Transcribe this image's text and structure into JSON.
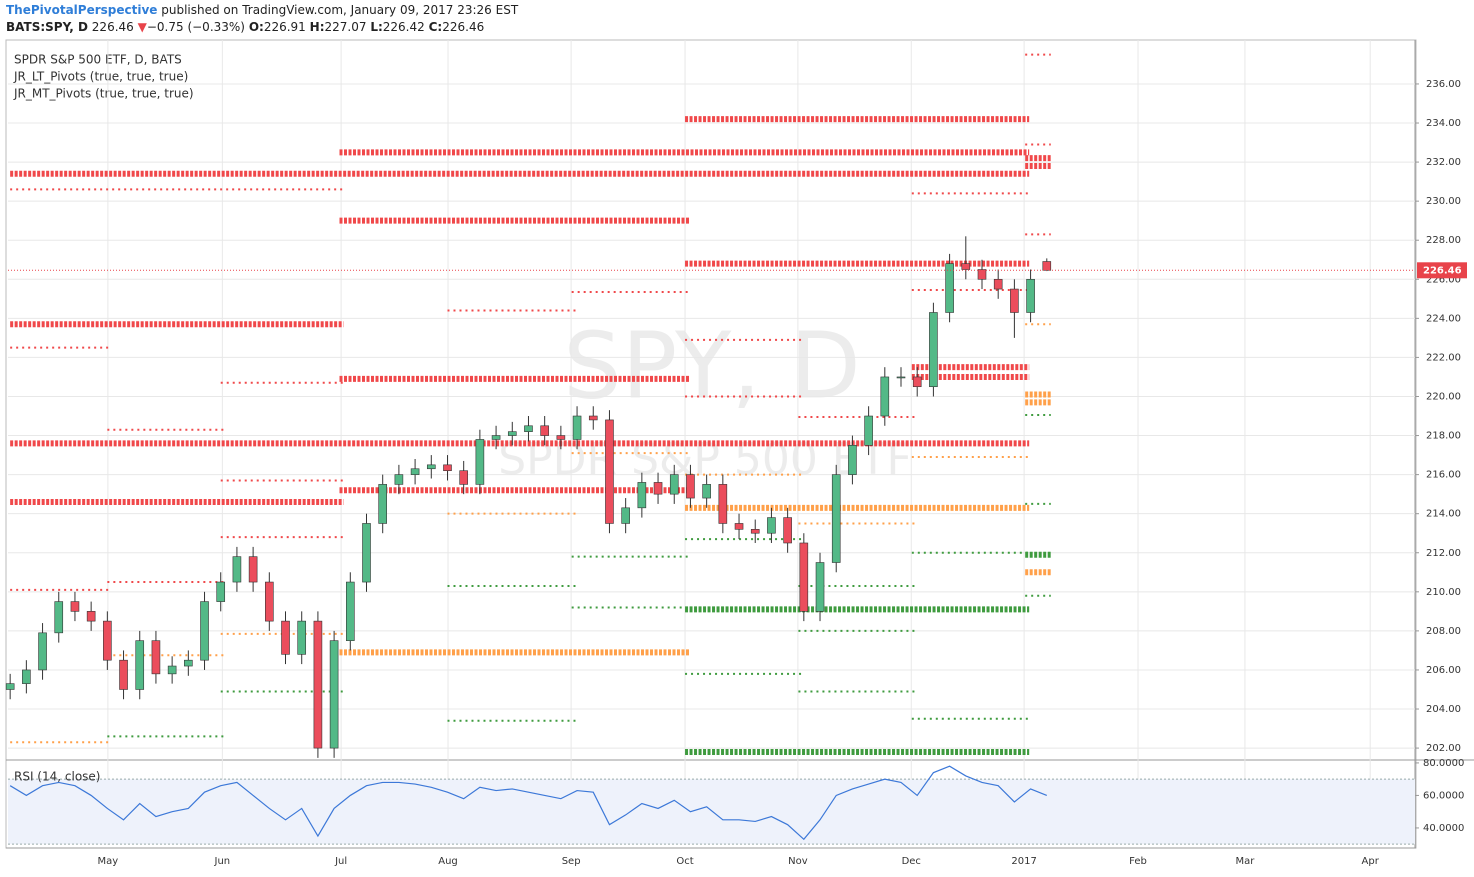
{
  "header": {
    "author": "ThePivotalPerspective",
    "published": " published on TradingView.com, January 09, 2017 23:26 EST",
    "symbol": "BATS:SPY, D",
    "price": "226.46",
    "arrow": "▼",
    "change": "−0.75 (−0.33%)",
    "o_label": "O:",
    "o": "226.91",
    "h_label": "H:",
    "h": "227.07",
    "l_label": "L:",
    "l": "226.42",
    "c_label": "C:",
    "c": "226.46"
  },
  "chart_data": {
    "type": "candlestick",
    "title": "SPDR S&P 500 ETF, D, BATS",
    "watermark": "SPY, D",
    "watermark_sub": "SPDR S&P 500 ETF",
    "x": [
      0,
      3,
      6,
      9,
      12,
      15,
      18,
      21,
      24,
      27,
      30,
      33,
      36,
      39,
      42,
      45,
      48,
      51,
      54,
      57,
      60,
      63,
      66,
      69,
      72,
      75,
      78,
      81,
      84,
      87,
      90,
      93,
      96,
      99,
      102,
      105,
      108,
      111,
      114,
      117,
      120,
      123,
      126,
      129,
      132,
      135,
      138,
      141,
      144,
      147,
      150,
      153,
      156,
      159,
      162,
      165,
      168,
      171,
      174,
      177,
      180,
      183,
      186,
      189,
      192
    ],
    "open": [
      205.0,
      205.3,
      206.0,
      207.9,
      209.5,
      209.0,
      208.5,
      206.5,
      205.0,
      207.5,
      205.8,
      206.2,
      206.5,
      209.5,
      210.5,
      211.8,
      210.5,
      208.5,
      206.8,
      208.5,
      202.0,
      207.5,
      210.5,
      213.5,
      215.5,
      216.0,
      216.3,
      216.5,
      216.2,
      215.5,
      217.8,
      218.0,
      218.2,
      218.5,
      218.0,
      217.8,
      219.0,
      218.8,
      213.5,
      214.3,
      215.6,
      215.0,
      216.0,
      214.8,
      215.5,
      213.5,
      213.2,
      213.0,
      213.8,
      212.5,
      209.0,
      211.5,
      216.0,
      217.5,
      219.0,
      221.0,
      221.0,
      220.5,
      224.3,
      226.8,
      226.5,
      226.0,
      225.5,
      224.3,
      226.91
    ],
    "high": [
      205.8,
      206.5,
      208.4,
      210.0,
      210.0,
      209.5,
      209.0,
      207.0,
      208.0,
      208.0,
      206.7,
      207.0,
      210.0,
      211.0,
      212.3,
      212.3,
      211.0,
      209.0,
      209.0,
      209.0,
      208.0,
      211.0,
      214.0,
      216.0,
      216.5,
      216.8,
      217.0,
      217.0,
      216.7,
      218.3,
      218.5,
      218.7,
      219.0,
      219.0,
      218.5,
      219.5,
      219.5,
      219.3,
      214.8,
      216.1,
      216.1,
      216.5,
      216.5,
      216.0,
      216.0,
      214.0,
      213.7,
      214.3,
      214.3,
      213.0,
      212.0,
      216.5,
      218.0,
      219.5,
      221.5,
      221.5,
      221.5,
      224.8,
      227.3,
      228.2,
      227.0,
      226.5,
      226.0,
      226.5,
      227.07
    ],
    "low": [
      204.5,
      204.8,
      205.5,
      207.4,
      208.5,
      208.0,
      206.0,
      204.5,
      204.5,
      205.3,
      205.3,
      205.7,
      206.0,
      209.0,
      210.0,
      210.0,
      208.0,
      206.3,
      206.3,
      201.5,
      201.5,
      207.0,
      210.0,
      213.0,
      215.0,
      215.5,
      215.8,
      215.7,
      215.0,
      215.0,
      217.3,
      217.5,
      217.7,
      217.5,
      217.3,
      217.3,
      218.3,
      213.0,
      213.0,
      213.8,
      214.5,
      214.5,
      214.3,
      214.3,
      213.0,
      212.7,
      212.5,
      212.5,
      212.0,
      208.5,
      208.5,
      211.0,
      215.5,
      217.0,
      218.5,
      220.5,
      220.0,
      220.0,
      223.8,
      226.0,
      225.5,
      225.0,
      223.0,
      223.8,
      226.42
    ],
    "close": [
      205.3,
      206.0,
      207.9,
      209.5,
      209.0,
      208.5,
      206.5,
      205.0,
      207.5,
      205.8,
      206.2,
      206.5,
      209.5,
      210.5,
      211.8,
      210.5,
      208.5,
      206.8,
      208.5,
      202.0,
      207.5,
      210.5,
      213.5,
      215.5,
      216.0,
      216.3,
      216.5,
      216.2,
      215.5,
      217.8,
      218.0,
      218.2,
      218.5,
      218.0,
      217.8,
      219.0,
      218.8,
      213.5,
      214.3,
      215.6,
      215.0,
      216.0,
      214.8,
      215.5,
      213.5,
      213.2,
      213.0,
      213.8,
      212.5,
      209.0,
      211.5,
      216.0,
      217.5,
      219.0,
      221.0,
      221.0,
      220.5,
      224.3,
      226.8,
      226.5,
      226.0,
      225.5,
      224.3,
      226.0,
      226.46
    ],
    "up_color": "#53b987",
    "down_color": "#eb4d5c",
    "xlim": [
      -0.4,
      260.2
    ],
    "xticks": [
      {
        "value": 18.1,
        "label": "May"
      },
      {
        "value": 39.3,
        "label": "Jun"
      },
      {
        "value": 61.3,
        "label": "Jul"
      },
      {
        "value": 81.1,
        "label": "Aug"
      },
      {
        "value": 103.9,
        "label": "Sep"
      },
      {
        "value": 125,
        "label": "Oct"
      },
      {
        "value": 145.9,
        "label": "Nov"
      },
      {
        "value": 166.9,
        "label": "Dec"
      },
      {
        "value": 187.8,
        "label": "2017"
      },
      {
        "value": 208.9,
        "label": "Feb"
      },
      {
        "value": 228.7,
        "label": "Mar"
      },
      {
        "value": 251.9,
        "label": "Apr"
      }
    ],
    "ylim": [
      201.39,
      238.25
    ],
    "yticks": [
      {
        "value": 202,
        "label": "202.00"
      },
      {
        "value": 204,
        "label": "204.00"
      },
      {
        "value": 206,
        "label": "206.00"
      },
      {
        "value": 208,
        "label": "208.00"
      },
      {
        "value": 210,
        "label": "210.00"
      },
      {
        "value": 212,
        "label": "212.00"
      },
      {
        "value": 214,
        "label": "214.00"
      },
      {
        "value": 216,
        "label": "216.00"
      },
      {
        "value": 218,
        "label": "218.00"
      },
      {
        "value": 220,
        "label": "220.00"
      },
      {
        "value": 222,
        "label": "222.00"
      },
      {
        "value": 224,
        "label": "224.00"
      },
      {
        "value": 226,
        "label": "226.00"
      },
      {
        "value": 228,
        "label": "228.00"
      },
      {
        "value": 230,
        "label": "230.00"
      },
      {
        "value": 232,
        "label": "232.00"
      },
      {
        "value": 234,
        "label": "234.00"
      },
      {
        "value": 236,
        "label": "236.00"
      }
    ],
    "grid": true,
    "last_price": 226.46,
    "last_price_color": "#e8434a",
    "pivots": [
      {
        "name": "JR_LT_Pivots (true, true, true)",
        "weight": "thick",
        "levels": [
          {
            "value": 231.4,
            "from": 0,
            "to": 188,
            "color": "#f0484a"
          },
          {
            "value": 217.6,
            "from": 0,
            "to": 188,
            "color": "#f0484a"
          },
          {
            "value": 223.7,
            "from": 0,
            "to": 61,
            "color": "#f0484a"
          },
          {
            "value": 214.6,
            "from": 0,
            "to": 61,
            "color": "#f0484a"
          },
          {
            "value": 232.5,
            "from": 61,
            "to": 188,
            "color": "#f0484a"
          },
          {
            "value": 229.0,
            "from": 61,
            "to": 125,
            "color": "#f0484a"
          },
          {
            "value": 220.9,
            "from": 61,
            "to": 125,
            "color": "#f0484a"
          },
          {
            "value": 215.2,
            "from": 61,
            "to": 125,
            "color": "#f0484a"
          },
          {
            "value": 234.2,
            "from": 125,
            "to": 188,
            "color": "#f0484a"
          },
          {
            "value": 226.8,
            "from": 125,
            "to": 188,
            "color": "#f0484a"
          },
          {
            "value": 221.5,
            "from": 167,
            "to": 188,
            "color": "#f0484a"
          },
          {
            "value": 221.0,
            "from": 167,
            "to": 188,
            "color": "#f0484a"
          },
          {
            "value": 231.8,
            "from": 188,
            "to": 192,
            "color": "#f0484a"
          },
          {
            "value": 232.2,
            "from": 188,
            "to": 192,
            "color": "#f0484a"
          },
          {
            "value": 206.9,
            "from": 61,
            "to": 125,
            "color": "#ffa04a"
          },
          {
            "value": 214.3,
            "from": 125,
            "to": 188,
            "color": "#ffa04a"
          },
          {
            "value": 220.1,
            "from": 188,
            "to": 192,
            "color": "#ffa04a"
          },
          {
            "value": 219.7,
            "from": 188,
            "to": 192,
            "color": "#ffa04a"
          },
          {
            "value": 211.0,
            "from": 188,
            "to": 192,
            "color": "#ffa04a"
          },
          {
            "value": 209.1,
            "from": 125,
            "to": 188,
            "color": "#3f9b3f"
          },
          {
            "value": 201.8,
            "from": 125,
            "to": 188,
            "color": "#3f9b3f"
          },
          {
            "value": 211.9,
            "from": 188,
            "to": 192,
            "color": "#3f9b3f"
          }
        ]
      },
      {
        "name": "JR_MT_Pivots (true, true, true)",
        "weight": "thin",
        "levels": [
          {
            "value": 230.6,
            "from": 0,
            "to": 61,
            "color": "#f0484a"
          },
          {
            "value": 222.5,
            "from": 0,
            "to": 18,
            "color": "#f0484a"
          },
          {
            "value": 218.3,
            "from": 18,
            "to": 39,
            "color": "#f0484a"
          },
          {
            "value": 210.5,
            "from": 18,
            "to": 39,
            "color": "#f0484a"
          },
          {
            "value": 210.1,
            "from": 0,
            "to": 18,
            "color": "#f0484a"
          },
          {
            "value": 220.7,
            "from": 39,
            "to": 61,
            "color": "#f0484a"
          },
          {
            "value": 215.7,
            "from": 39,
            "to": 61,
            "color": "#f0484a"
          },
          {
            "value": 212.8,
            "from": 39,
            "to": 61,
            "color": "#f0484a"
          },
          {
            "value": 224.4,
            "from": 81,
            "to": 104,
            "color": "#f0484a"
          },
          {
            "value": 225.35,
            "from": 104,
            "to": 125,
            "color": "#f0484a"
          },
          {
            "value": 222.9,
            "from": 125,
            "to": 146,
            "color": "#f0484a"
          },
          {
            "value": 220.0,
            "from": 125,
            "to": 146,
            "color": "#f0484a"
          },
          {
            "value": 218.95,
            "from": 146,
            "to": 167,
            "color": "#f0484a"
          },
          {
            "value": 230.4,
            "from": 167,
            "to": 188,
            "color": "#f0484a"
          },
          {
            "value": 225.45,
            "from": 167,
            "to": 188,
            "color": "#f0484a"
          },
          {
            "value": 237.5,
            "from": 188,
            "to": 192,
            "color": "#f0484a"
          },
          {
            "value": 232.9,
            "from": 188,
            "to": 192,
            "color": "#f0484a"
          },
          {
            "value": 228.3,
            "from": 188,
            "to": 192,
            "color": "#f0484a"
          },
          {
            "value": 202.3,
            "from": 0,
            "to": 18,
            "color": "#ffa04a"
          },
          {
            "value": 206.75,
            "from": 18,
            "to": 39,
            "color": "#ffa04a"
          },
          {
            "value": 207.85,
            "from": 39,
            "to": 61,
            "color": "#ffa04a"
          },
          {
            "value": 214.0,
            "from": 81,
            "to": 104,
            "color": "#ffa04a"
          },
          {
            "value": 217.1,
            "from": 104,
            "to": 125,
            "color": "#ffa04a"
          },
          {
            "value": 216.0,
            "from": 125,
            "to": 146,
            "color": "#ffa04a"
          },
          {
            "value": 213.5,
            "from": 146,
            "to": 167,
            "color": "#ffa04a"
          },
          {
            "value": 216.9,
            "from": 167,
            "to": 188,
            "color": "#ffa04a"
          },
          {
            "value": 223.7,
            "from": 188,
            "to": 192,
            "color": "#ffa04a"
          },
          {
            "value": 202.6,
            "from": 18,
            "to": 39,
            "color": "#3f9b3f"
          },
          {
            "value": 204.9,
            "from": 39,
            "to": 61,
            "color": "#3f9b3f"
          },
          {
            "value": 203.4,
            "from": 81,
            "to": 104,
            "color": "#3f9b3f"
          },
          {
            "value": 210.3,
            "from": 81,
            "to": 104,
            "color": "#3f9b3f"
          },
          {
            "value": 209.2,
            "from": 104,
            "to": 125,
            "color": "#3f9b3f"
          },
          {
            "value": 211.8,
            "from": 104,
            "to": 125,
            "color": "#3f9b3f"
          },
          {
            "value": 205.8,
            "from": 125,
            "to": 146,
            "color": "#3f9b3f"
          },
          {
            "value": 212.7,
            "from": 125,
            "to": 146,
            "color": "#3f9b3f"
          },
          {
            "value": 204.9,
            "from": 146,
            "to": 167,
            "color": "#3f9b3f"
          },
          {
            "value": 208.0,
            "from": 146,
            "to": 167,
            "color": "#3f9b3f"
          },
          {
            "value": 210.3,
            "from": 146,
            "to": 167,
            "color": "#3f9b3f"
          },
          {
            "value": 203.5,
            "from": 167,
            "to": 188,
            "color": "#3f9b3f"
          },
          {
            "value": 212.0,
            "from": 167,
            "to": 188,
            "color": "#3f9b3f"
          },
          {
            "value": 214.5,
            "from": 188,
            "to": 192,
            "color": "#3f9b3f"
          },
          {
            "value": 209.8,
            "from": 188,
            "to": 192,
            "color": "#3f9b3f"
          },
          {
            "value": 219.05,
            "from": 188,
            "to": 192,
            "color": "#3f9b3f"
          }
        ]
      }
    ],
    "rsi": {
      "title": "RSI (14, close)",
      "color": "#3c78d8",
      "band": [
        30,
        70
      ],
      "ylim": [
        29.5,
        81.8
      ],
      "yticks": [
        {
          "value": 40,
          "label": "40.0000"
        },
        {
          "value": 60,
          "label": "60.0000"
        },
        {
          "value": 80,
          "label": "80.0000"
        }
      ],
      "values": [
        66,
        60,
        66,
        68,
        66,
        60,
        52,
        45,
        55,
        47,
        50,
        52,
        62,
        66,
        68,
        60,
        52,
        45,
        52,
        35,
        52,
        60,
        66,
        68,
        68,
        67,
        65,
        62,
        58,
        65,
        63,
        64,
        62,
        60,
        58,
        63,
        62,
        42,
        48,
        55,
        52,
        57,
        50,
        53,
        45,
        45,
        44,
        47,
        42,
        33,
        45,
        60,
        64,
        67,
        70,
        68,
        60,
        74,
        78,
        72,
        68,
        66,
        56,
        64,
        60
      ]
    }
  }
}
